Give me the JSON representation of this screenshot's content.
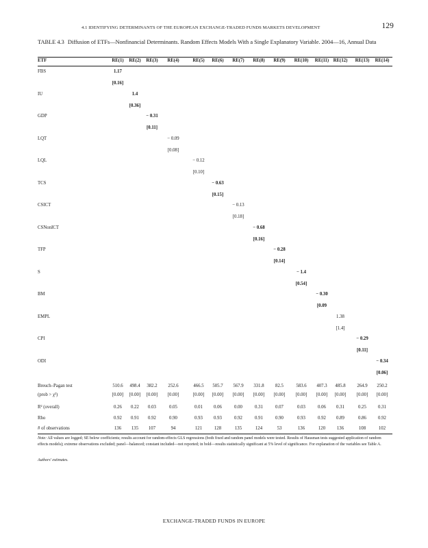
{
  "running_header": "4.1 IDENTIFYING DETERMINANTS OF THE EUROPEAN EXCHANGE-TRADED FUNDS MARKETS DEVELOPMENT",
  "page_number": "129",
  "caption": {
    "label": "TABLE 4.3",
    "text": "Diffusion of ETFs—Nonfinancial Determinants. Random Effects Models With a Single Explanatory Variable. 2004—16, Annual Data"
  },
  "table": {
    "header_first": "ETF",
    "columns": [
      "RE(1)",
      "RE(2)",
      "RE(3)",
      "RE(4)",
      "RE(5)",
      "RE(6)",
      "RE(7)",
      "RE(8)",
      "RE(9)",
      "RE(10)",
      "RE(11)",
      "RE(12)",
      "RE(13)",
      "RE(14)"
    ],
    "variables": [
      {
        "name": "FBS",
        "col": 0,
        "coef": "1.17",
        "se": "[0.16]",
        "bold": true
      },
      {
        "name": "IU",
        "col": 1,
        "coef": "1.4",
        "se": "[0.36]",
        "bold": true
      },
      {
        "name": "GDP",
        "col": 2,
        "coef": "− 0.31",
        "se": "[0.11]",
        "bold": true
      },
      {
        "name": "LQT",
        "col": 3,
        "coef": "− 0.09",
        "se": "[0.08]",
        "bold": false
      },
      {
        "name": "LQL",
        "col": 4,
        "coef": "− 0.12",
        "se": "[0.10]",
        "bold": false
      },
      {
        "name": "TCS",
        "col": 5,
        "coef": "− 0.63",
        "se": "[0.15]",
        "bold": true
      },
      {
        "name": "CSICT",
        "col": 6,
        "coef": "− 0.13",
        "se": "[0.18]",
        "bold": false
      },
      {
        "name": "CSNonICT",
        "col": 7,
        "coef": "− 0.68",
        "se": "[0.16]",
        "bold": true
      },
      {
        "name": "TFP",
        "col": 8,
        "coef": "− 0.28",
        "se": "[0.14]",
        "bold": true
      },
      {
        "name": "S",
        "col": 9,
        "coef": "− 1.4",
        "se": "[0.54]",
        "bold": true
      },
      {
        "name": "BM",
        "col": 10,
        "coef": "− 0.30",
        "se": "[0.09",
        "bold": true
      },
      {
        "name": "EMPL",
        "col": 11,
        "coef": "1.38",
        "se": "[1.4]",
        "bold": false
      },
      {
        "name": "CPI",
        "col": 12,
        "coef": "− 0.29",
        "se": "[0.11]",
        "bold": true
      },
      {
        "name": "ODI",
        "col": 13,
        "coef": "− 0.34",
        "se": "[0.06]",
        "bold": true
      }
    ],
    "stats": {
      "breusch_label_line1": "Breuch–Pagan test",
      "breusch_label_line2": "(prob > χ²)",
      "breusch": [
        "510.6",
        "498.4",
        "382.2",
        "252.6",
        "466.5",
        "505.7",
        "567.9",
        "331.8",
        "82.5",
        "583.6",
        "407.3",
        "485.8",
        "264.9",
        "250.2"
      ],
      "breusch_p": [
        "[0.00]",
        "[0.00]",
        "[0.00]",
        "[0.00]",
        "[0.00]",
        "[0.00]",
        "[0.00]",
        "[0.00]",
        "[0.00]",
        "[0.00]",
        "[0.00]",
        "[0.00]",
        "[0.00]",
        "[0.00]"
      ],
      "r2_label": "R² (overall)",
      "r2": [
        "0.26",
        "0.22",
        "0.03",
        "0.05",
        "0.01",
        "0.06",
        "0.00",
        "0.31",
        "0.07",
        "0.03",
        "0.06",
        "0.31",
        "0.25",
        "0.31"
      ],
      "rho_label": "Rho",
      "rho": [
        "0.92",
        "0.91",
        "0.92",
        "0.90",
        "0.93",
        "0.93",
        "0.92",
        "0.91",
        "0.90",
        "0.93",
        "0.92",
        "0.89",
        "0.86",
        "0.92"
      ],
      "obs_label": "# of observations",
      "obs": [
        "136",
        "135",
        "107",
        "94",
        "121",
        "128",
        "135",
        "124",
        "53",
        "136",
        "120",
        "136",
        "108",
        "102"
      ]
    }
  },
  "note": {
    "lead": "Note:",
    "text": " All values are logged; SE below coefficients; results account for random-effects GLS regressions (both fixed and random panel models were tested. Results of Hausman tests suggested application of random effects models); extreme observations excluded; panel—balanced; constant included—not reported; in bold—results statistically significant at 5% level of significance. For explanation of the variables see Table A."
  },
  "source": "Authors' estimates.",
  "footer": "EXCHANGE-TRADED FUNDS IN EUROPE"
}
